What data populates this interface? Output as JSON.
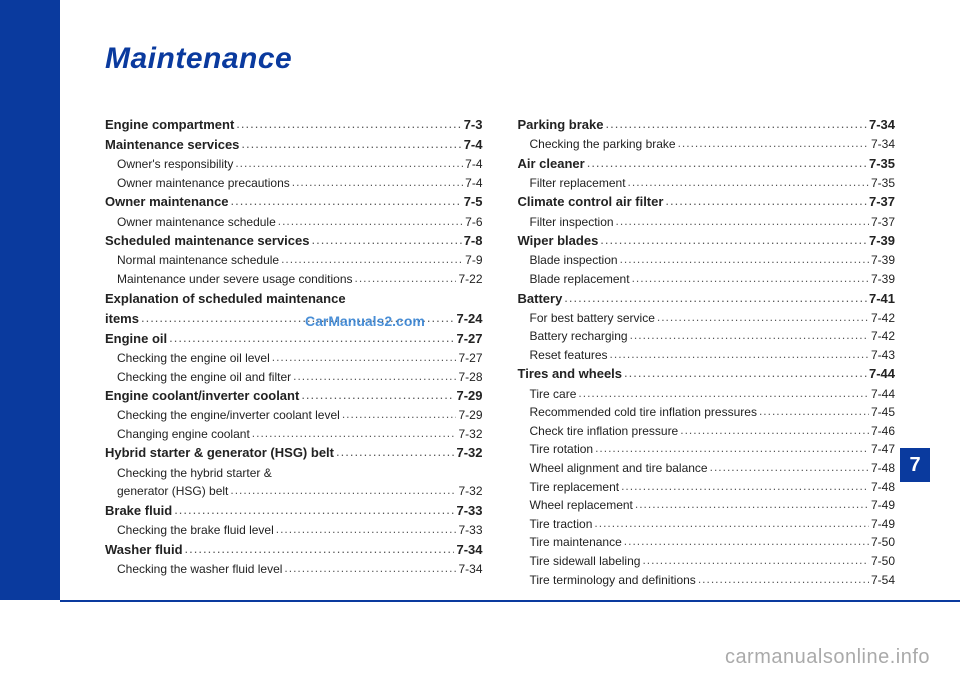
{
  "title": "Maintenance",
  "chapter_number": "7",
  "watermark_center": "CarManuals2.com",
  "watermark_bottom": "carmanualsonline.info",
  "colors": {
    "primary": "#0a3a9e",
    "text": "#222222",
    "watermark_center": "#2a7bcf",
    "watermark_bottom": "#aaaaaa",
    "background": "#ffffff"
  },
  "left_column": [
    {
      "type": "section",
      "label": "Engine compartment",
      "page": "7-3"
    },
    {
      "type": "section",
      "label": "Maintenance services",
      "page": "7-4"
    },
    {
      "type": "sub",
      "label": "Owner's responsibility",
      "page": "7-4"
    },
    {
      "type": "sub",
      "label": "Owner maintenance precautions",
      "page": "7-4"
    },
    {
      "type": "section",
      "label": "Owner maintenance",
      "page": "7-5"
    },
    {
      "type": "sub",
      "label": "Owner maintenance schedule",
      "page": "7-6"
    },
    {
      "type": "section",
      "label": "Scheduled maintenance services",
      "page": "7-8"
    },
    {
      "type": "sub",
      "label": "Normal maintenance schedule",
      "page": "7-9"
    },
    {
      "type": "sub",
      "label": "Maintenance under severe usage conditions",
      "page": "7-22"
    },
    {
      "type": "section",
      "label": "Explanation of scheduled maintenance",
      "page": ""
    },
    {
      "type": "section",
      "label": "items",
      "page": "7-24"
    },
    {
      "type": "section",
      "label": "Engine oil",
      "page": "7-27"
    },
    {
      "type": "sub",
      "label": "Checking the engine oil level",
      "page": "7-27"
    },
    {
      "type": "sub",
      "label": "Checking the engine oil and filter",
      "page": "7-28"
    },
    {
      "type": "section",
      "label": "Engine coolant/inverter coolant",
      "page": "7-29"
    },
    {
      "type": "sub",
      "label": "Checking the engine/inverter coolant level",
      "page": "7-29"
    },
    {
      "type": "sub",
      "label": "Changing engine coolant",
      "page": "7-32"
    },
    {
      "type": "section",
      "label": "Hybrid starter & generator (HSG) belt",
      "page": "7-32"
    },
    {
      "type": "sub",
      "label": "Checking the hybrid starter &",
      "page": ""
    },
    {
      "type": "sub",
      "label": "generator (HSG) belt",
      "page": "7-32"
    },
    {
      "type": "section",
      "label": "Brake fluid",
      "page": "7-33"
    },
    {
      "type": "sub",
      "label": "Checking the brake fluid level",
      "page": "7-33"
    },
    {
      "type": "section",
      "label": "Washer fluid",
      "page": "7-34"
    },
    {
      "type": "sub",
      "label": "Checking the washer fluid level",
      "page": "7-34"
    }
  ],
  "right_column": [
    {
      "type": "section",
      "label": "Parking brake",
      "page": "7-34"
    },
    {
      "type": "sub",
      "label": "Checking the parking brake",
      "page": "7-34"
    },
    {
      "type": "section",
      "label": "Air cleaner",
      "page": "7-35"
    },
    {
      "type": "sub",
      "label": "Filter replacement",
      "page": "7-35"
    },
    {
      "type": "section",
      "label": "Climate control air filter",
      "page": "7-37"
    },
    {
      "type": "sub",
      "label": "Filter inspection",
      "page": "7-37"
    },
    {
      "type": "section",
      "label": "Wiper blades",
      "page": "7-39"
    },
    {
      "type": "sub",
      "label": "Blade inspection",
      "page": "7-39"
    },
    {
      "type": "sub",
      "label": "Blade replacement",
      "page": "7-39"
    },
    {
      "type": "section",
      "label": "Battery",
      "page": "7-41"
    },
    {
      "type": "sub",
      "label": "For best battery service",
      "page": "7-42"
    },
    {
      "type": "sub",
      "label": "Battery recharging",
      "page": "7-42"
    },
    {
      "type": "sub",
      "label": "Reset features",
      "page": "7-43"
    },
    {
      "type": "section",
      "label": "Tires and wheels",
      "page": "7-44"
    },
    {
      "type": "sub",
      "label": "Tire care",
      "page": "7-44"
    },
    {
      "type": "sub",
      "label": "Recommended cold tire inflation pressures",
      "page": "7-45"
    },
    {
      "type": "sub",
      "label": "Check tire inflation pressure",
      "page": "7-46"
    },
    {
      "type": "sub",
      "label": "Tire rotation",
      "page": "7-47"
    },
    {
      "type": "sub",
      "label": "Wheel alignment and tire balance",
      "page": "7-48"
    },
    {
      "type": "sub",
      "label": "Tire replacement",
      "page": "7-48"
    },
    {
      "type": "sub",
      "label": "Wheel replacement",
      "page": "7-49"
    },
    {
      "type": "sub",
      "label": "Tire traction",
      "page": "7-49"
    },
    {
      "type": "sub",
      "label": "Tire maintenance",
      "page": "7-50"
    },
    {
      "type": "sub",
      "label": "Tire sidewall labeling",
      "page": "7-50"
    },
    {
      "type": "sub",
      "label": "Tire terminology and definitions",
      "page": "7-54"
    }
  ]
}
